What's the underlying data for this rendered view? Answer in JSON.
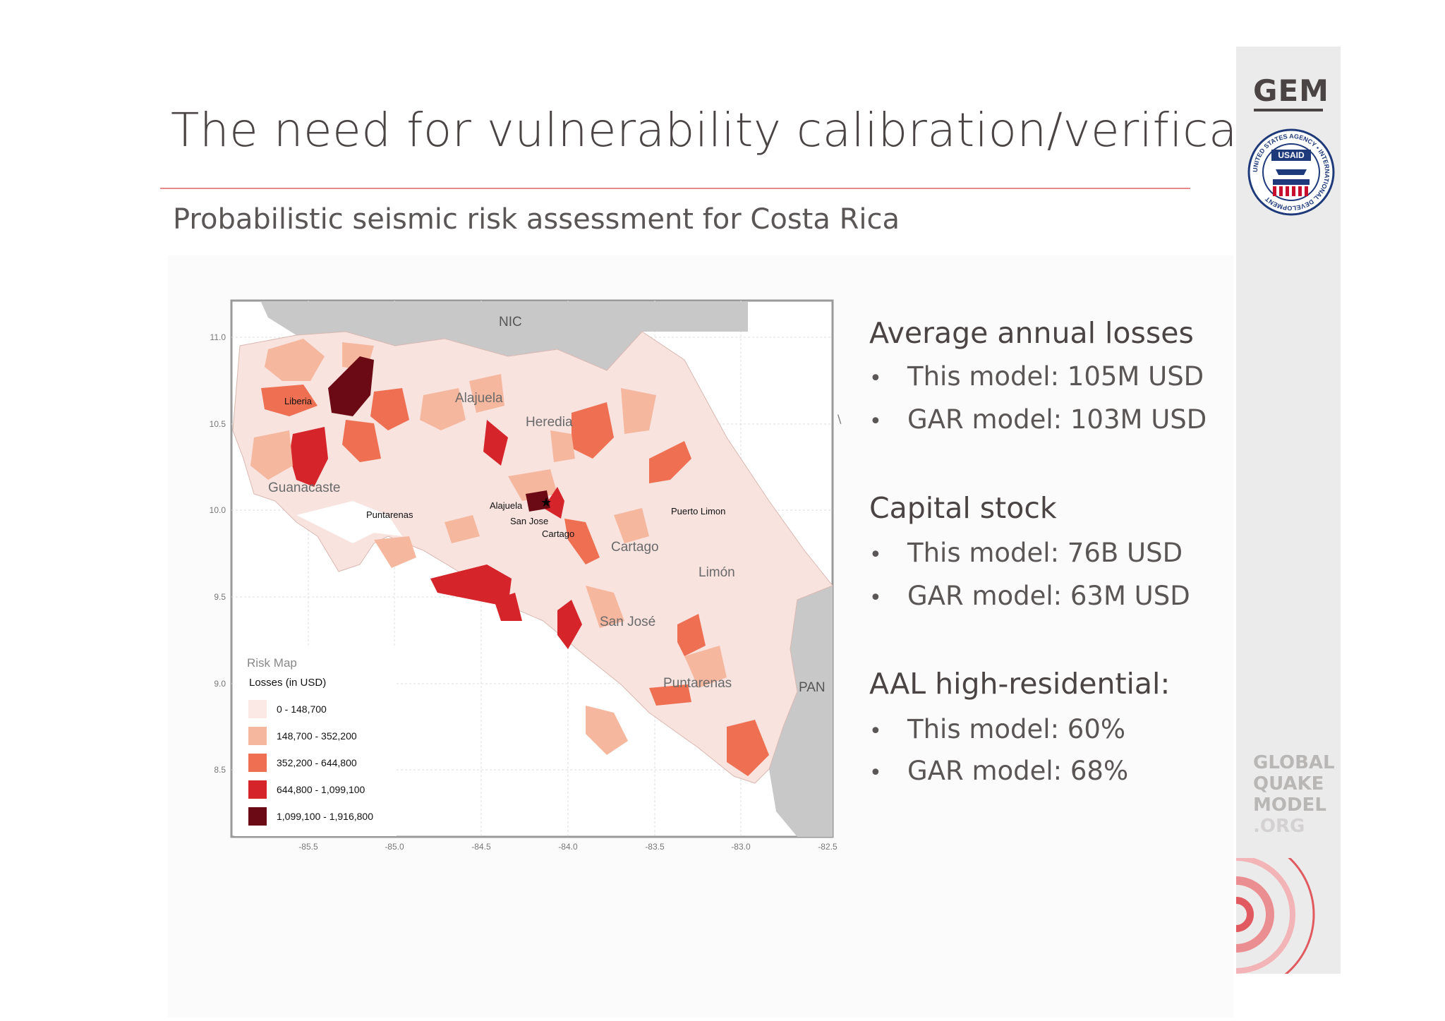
{
  "slide": {
    "title": "The need for vulnerability calibration/verification",
    "subtitle": "Probabilistic seismic risk assessment for Costa Rica"
  },
  "map": {
    "countries": [
      "NIC",
      "PAN"
    ],
    "provinces": [
      "Alajuela",
      "Heredia",
      "Guanacaste",
      "Cartago",
      "Limón",
      "San José",
      "Puntarenas"
    ],
    "cities": [
      "Liberia",
      "Puntarenas",
      "Alajuela",
      "San Jose",
      "Cartago",
      "Puerto Limon"
    ],
    "y_axis_ticks": [
      "11.0",
      "10.5",
      "10.0",
      "9.5",
      "9.0",
      "8.5"
    ],
    "x_axis_ticks": [
      "-85.5",
      "-85.0",
      "-84.5",
      "-84.0",
      "-83.5",
      "-83.0",
      "-82.5"
    ],
    "legend": {
      "title": "Risk Map",
      "subtitle": "Losses (in USD)",
      "items": [
        {
          "label": "0 - 148,700",
          "color": "#fbe9e6"
        },
        {
          "label": "148,700 - 352,200",
          "color": "#f6b79f"
        },
        {
          "label": "352,200 - 644,800",
          "color": "#ef6f52"
        },
        {
          "label": "644,800 - 1,099,100",
          "color": "#d5242a"
        },
        {
          "label": "1,099,100 - 1,916,800",
          "color": "#6b0a14"
        }
      ]
    }
  },
  "stats": {
    "aal": {
      "heading": "Average annual losses",
      "items": [
        "This model: 105M USD",
        "GAR model: 103M USD"
      ]
    },
    "capital": {
      "heading": "Capital stock",
      "items": [
        "This model: 76B USD",
        "GAR model: 63M USD"
      ]
    },
    "residential": {
      "heading": "AAL high-residential:",
      "items": [
        "This model: 60%",
        "GAR model: 68%"
      ]
    },
    "bullet": "•"
  },
  "sidebar": {
    "gem_logo": "GEM",
    "usaid_label": "USAID",
    "usaid_ring_text": "UNITED STATES AGENCY • INTERNATIONAL DEVELOPMENT",
    "gqm_lines": [
      "GLOBAL",
      "QUAKE",
      "MODEL",
      ".ORG"
    ]
  },
  "colors": {
    "accent_rule": "#e8898c",
    "text_dark": "#4a4444",
    "sidebar_bg": "#ecebeb",
    "neighbor_land": "#c9c8c8"
  }
}
